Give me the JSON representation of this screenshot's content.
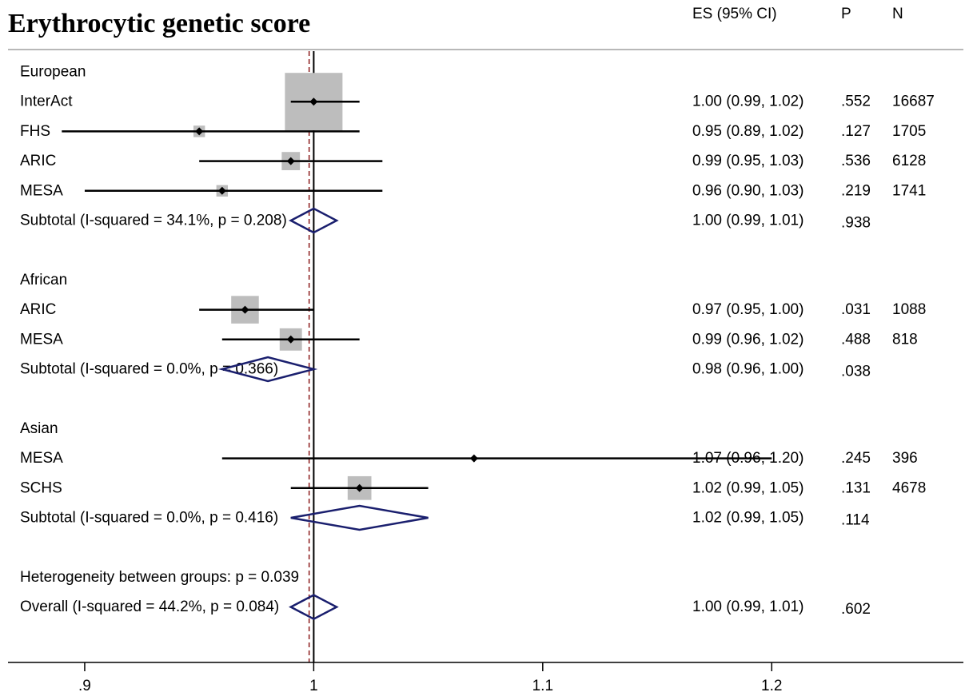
{
  "title": "Erythrocytic genetic score",
  "columns": {
    "es": "ES (95% CI)",
    "p": "P",
    "n": "N"
  },
  "chart_data": {
    "type": "forest",
    "null_line": 1,
    "xlim": [
      0.8665,
      1.2837
    ],
    "xticks": [
      0.9,
      1,
      1.1,
      1.2
    ],
    "xtick_labels": [
      ".9",
      "1",
      "1.1",
      "1.2"
    ],
    "overall_estimate": 0.998,
    "rows": [
      {
        "kind": "header",
        "label": "European"
      },
      {
        "kind": "study",
        "label": "InterAct",
        "es": 1.0,
        "lo": 0.99,
        "hi": 1.02,
        "ci": "1.00 (0.99, 1.02)",
        "p": ".552",
        "n": "16687",
        "weight": 1.0
      },
      {
        "kind": "study",
        "label": "FHS",
        "es": 0.95,
        "lo": 0.89,
        "hi": 1.02,
        "ci": "0.95 (0.89, 1.02)",
        "p": ".127",
        "n": "1705",
        "weight": 0.04
      },
      {
        "kind": "study",
        "label": "ARIC",
        "es": 0.99,
        "lo": 0.95,
        "hi": 1.03,
        "ci": "0.99 (0.95, 1.03)",
        "p": ".536",
        "n": "6128",
        "weight": 0.1
      },
      {
        "kind": "study",
        "label": "MESA",
        "es": 0.96,
        "lo": 0.9,
        "hi": 1.03,
        "ci": "0.96 (0.90, 1.03)",
        "p": ".219",
        "n": "1741",
        "weight": 0.04
      },
      {
        "kind": "subtotal",
        "label": "Subtotal  (I-squared = 34.1%, p = 0.208)",
        "es": 1.0,
        "lo": 0.99,
        "hi": 1.01,
        "ci": "1.00 (0.99, 1.01)",
        "p": ".938",
        "n": ""
      },
      {
        "kind": "blank"
      },
      {
        "kind": "header",
        "label": "African"
      },
      {
        "kind": "study",
        "label": "ARIC",
        "es": 0.97,
        "lo": 0.95,
        "hi": 1.0,
        "ci": "0.97 (0.95, 1.00)",
        "p": ".031",
        "n": "1088",
        "weight": 0.23
      },
      {
        "kind": "study",
        "label": "MESA",
        "es": 0.99,
        "lo": 0.96,
        "hi": 1.02,
        "ci": "0.99 (0.96, 1.02)",
        "p": ".488",
        "n": "818",
        "weight": 0.15
      },
      {
        "kind": "subtotal",
        "label": "Subtotal  (I-squared = 0.0%, p = 0.366)",
        "es": 0.98,
        "lo": 0.96,
        "hi": 1.0,
        "ci": "0.98 (0.96, 1.00)",
        "p": ".038",
        "n": ""
      },
      {
        "kind": "blank"
      },
      {
        "kind": "header",
        "label": "Asian"
      },
      {
        "kind": "study",
        "label": "MESA",
        "es": 1.07,
        "lo": 0.96,
        "hi": 1.2,
        "ci": "1.07 (0.96, 1.20)",
        "p": ".245",
        "n": "396",
        "weight": 0.0
      },
      {
        "kind": "study",
        "label": "SCHS",
        "es": 1.02,
        "lo": 0.99,
        "hi": 1.05,
        "ci": "1.02 (0.99, 1.05)",
        "p": ".131",
        "n": "4678",
        "weight": 0.17
      },
      {
        "kind": "subtotal",
        "label": "Subtotal  (I-squared = 0.0%, p = 0.416)",
        "es": 1.02,
        "lo": 0.99,
        "hi": 1.05,
        "ci": "1.02 (0.99, 1.05)",
        "p": ".114",
        "n": ""
      },
      {
        "kind": "blank"
      },
      {
        "kind": "header",
        "label": "Heterogeneity between groups: p = 0.039"
      },
      {
        "kind": "subtotal",
        "label": "Overall  (I-squared = 44.2%, p = 0.084)",
        "es": 1.0,
        "lo": 0.99,
        "hi": 1.01,
        "ci": "1.00 (0.99, 1.01)",
        "p": ".602",
        "n": ""
      }
    ]
  },
  "colors": {
    "box": "#bdbdbd",
    "diamond": "#1a1f6e",
    "null_line": "#000000",
    "overall_line": "#8b1a1a"
  }
}
